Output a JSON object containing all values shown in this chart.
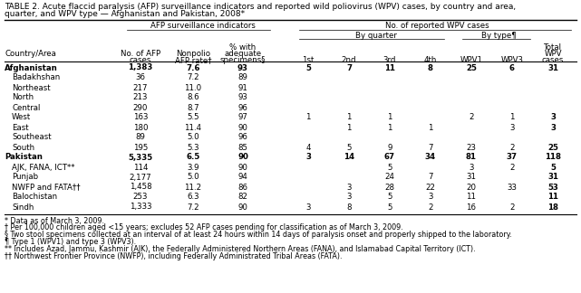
{
  "title1": "TABLE 2. Acute flaccid paralysis (AFP) surveillance indicators and reported wild poliovirus (WPV) cases, by country and area,",
  "title2": "quarter, and WPV type — Afghanistan and Pakistan, 2008*",
  "rows": [
    {
      "name": "Afghanistan",
      "indent": false,
      "bold": true,
      "afp": "1,383",
      "rate": "7.6",
      "pct": "93",
      "q1": "5",
      "q2": "7",
      "q3": "11",
      "q4": "8",
      "wpv1": "25",
      "wpv3": "6",
      "total": "31"
    },
    {
      "name": "Badakhshan",
      "indent": true,
      "bold": false,
      "afp": "36",
      "rate": "7.2",
      "pct": "89",
      "q1": "",
      "q2": "",
      "q3": "",
      "q4": "",
      "wpv1": "",
      "wpv3": "",
      "total": ""
    },
    {
      "name": "Northeast",
      "indent": true,
      "bold": false,
      "afp": "217",
      "rate": "11.0",
      "pct": "91",
      "q1": "",
      "q2": "",
      "q3": "",
      "q4": "",
      "wpv1": "",
      "wpv3": "",
      "total": ""
    },
    {
      "name": "North",
      "indent": true,
      "bold": false,
      "afp": "213",
      "rate": "8.6",
      "pct": "93",
      "q1": "",
      "q2": "",
      "q3": "",
      "q4": "",
      "wpv1": "",
      "wpv3": "",
      "total": ""
    },
    {
      "name": "Central",
      "indent": true,
      "bold": false,
      "afp": "290",
      "rate": "8.7",
      "pct": "96",
      "q1": "",
      "q2": "",
      "q3": "",
      "q4": "",
      "wpv1": "",
      "wpv3": "",
      "total": ""
    },
    {
      "name": "West",
      "indent": true,
      "bold": false,
      "afp": "163",
      "rate": "5.5",
      "pct": "97",
      "q1": "1",
      "q2": "1",
      "q3": "1",
      "q4": "",
      "wpv1": "2",
      "wpv3": "1",
      "total": "3"
    },
    {
      "name": "East",
      "indent": true,
      "bold": false,
      "afp": "180",
      "rate": "11.4",
      "pct": "90",
      "q1": "",
      "q2": "1",
      "q3": "1",
      "q4": "1",
      "wpv1": "",
      "wpv3": "3",
      "total": "3"
    },
    {
      "name": "Southeast",
      "indent": true,
      "bold": false,
      "afp": "89",
      "rate": "5.0",
      "pct": "96",
      "q1": "",
      "q2": "",
      "q3": "",
      "q4": "",
      "wpv1": "",
      "wpv3": "",
      "total": ""
    },
    {
      "name": "South",
      "indent": true,
      "bold": false,
      "afp": "195",
      "rate": "5.3",
      "pct": "85",
      "q1": "4",
      "q2": "5",
      "q3": "9",
      "q4": "7",
      "wpv1": "23",
      "wpv3": "2",
      "total": "25"
    },
    {
      "name": "Pakistan",
      "indent": false,
      "bold": true,
      "afp": "5,335",
      "rate": "6.5",
      "pct": "90",
      "q1": "3",
      "q2": "14",
      "q3": "67",
      "q4": "34",
      "wpv1": "81",
      "wpv3": "37",
      "total": "118"
    },
    {
      "name": "AJK, FANA, ICT**",
      "indent": true,
      "bold": false,
      "afp": "114",
      "rate": "3.9",
      "pct": "90",
      "q1": "",
      "q2": "",
      "q3": "5",
      "q4": "",
      "wpv1": "3",
      "wpv3": "2",
      "total": "5"
    },
    {
      "name": "Punjab",
      "indent": true,
      "bold": false,
      "afp": "2,177",
      "rate": "5.0",
      "pct": "94",
      "q1": "",
      "q2": "",
      "q3": "24",
      "q4": "7",
      "wpv1": "31",
      "wpv3": "",
      "total": "31"
    },
    {
      "name": "NWFP and FATA††",
      "indent": true,
      "bold": false,
      "afp": "1,458",
      "rate": "11.2",
      "pct": "86",
      "q1": "",
      "q2": "3",
      "q3": "28",
      "q4": "22",
      "wpv1": "20",
      "wpv3": "33",
      "total": "53"
    },
    {
      "name": "Balochistan",
      "indent": true,
      "bold": false,
      "afp": "253",
      "rate": "6.3",
      "pct": "82",
      "q1": "",
      "q2": "3",
      "q3": "5",
      "q4": "3",
      "wpv1": "11",
      "wpv3": "",
      "total": "11"
    },
    {
      "name": "Sindh",
      "indent": true,
      "bold": false,
      "afp": "1,333",
      "rate": "7.2",
      "pct": "90",
      "q1": "3",
      "q2": "8",
      "q3": "5",
      "q4": "2",
      "wpv1": "16",
      "wpv3": "2",
      "total": "18"
    }
  ],
  "footnotes": [
    "* Data as of March 3, 2009.",
    "† Per 100,000 children aged <15 years; excludes 52 AFP cases pending for classification as of March 3, 2009.",
    "§ Two stool specimens collected at an interval of at least 24 hours within 14 days of paralysis onset and properly shipped to the laboratory.",
    "¶ Type 1 (WPV1) and type 3 (WPV3).",
    "** Includes Azad, Jammu, Kashmir (AJK), the Federally Administered Northern Areas (FANA), and Islamabad Capital Territory (ICT).",
    "†† Northwest Frontier Province (NWFP), including Federally Administrated Tribal Areas (FATA)."
  ]
}
